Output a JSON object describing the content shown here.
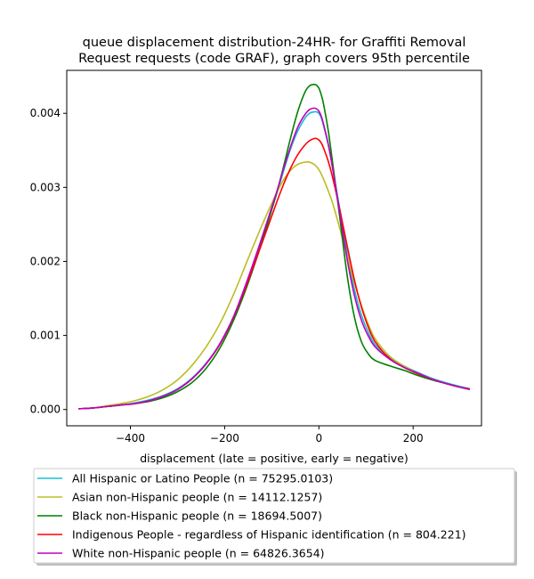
{
  "chart_data": {
    "type": "line",
    "title_line1": "queue displacement distribution-24HR-  for Graffiti Removal",
    "title_line2": "Request  requests (code GRAF), graph covers 95th percentile",
    "xlabel": "displacement (late = positive, early = negative)",
    "ylabel": "",
    "xlim": [
      -535,
      345
    ],
    "ylim": [
      -0.00022,
      0.00458
    ],
    "x_ticks": [
      -400,
      -200,
      0,
      200
    ],
    "x_tick_labels": [
      "−400",
      "−200",
      "0",
      "200"
    ],
    "y_ticks": [
      0.0,
      0.001,
      0.002,
      0.003,
      0.004
    ],
    "y_tick_labels": [
      "0.000",
      "0.001",
      "0.002",
      "0.003",
      "0.004"
    ],
    "grid": false,
    "legend_position": "below plot",
    "x": [
      -510,
      -480,
      -450,
      -420,
      -390,
      -360,
      -330,
      -300,
      -270,
      -240,
      -210,
      -180,
      -150,
      -120,
      -90,
      -75,
      -60,
      -45,
      -30,
      -20,
      -10,
      -5,
      0,
      5,
      10,
      20,
      30,
      45,
      60,
      75,
      90,
      105,
      120,
      150,
      180,
      210,
      240,
      270,
      300,
      320
    ],
    "series": [
      {
        "name": "All Hispanic or Latino People (n = 75295.0103)",
        "color": "#17becf",
        "values": [
          1e-05,
          2e-05,
          4e-05,
          6e-05,
          9e-05,
          0.00013,
          0.00019,
          0.00028,
          0.00042,
          0.00062,
          0.00089,
          0.00127,
          0.00177,
          0.00232,
          0.0029,
          0.00322,
          0.00352,
          0.00376,
          0.00393,
          0.004,
          0.00402,
          0.00402,
          0.004,
          0.00394,
          0.00383,
          0.00357,
          0.00324,
          0.00268,
          0.00211,
          0.00163,
          0.00128,
          0.00104,
          0.00087,
          0.0007,
          0.00059,
          0.0005,
          0.00042,
          0.00036,
          0.00031,
          0.00028
        ]
      },
      {
        "name": "Asian non-Hispanic people (n = 14112.1257)",
        "color": "#bcbd22",
        "values": [
          1e-05,
          2e-05,
          5e-05,
          8e-05,
          0.00012,
          0.00018,
          0.00027,
          0.0004,
          0.00059,
          0.00084,
          0.00116,
          0.00157,
          0.00204,
          0.0025,
          0.00292,
          0.0031,
          0.00323,
          0.00331,
          0.00334,
          0.00334,
          0.00331,
          0.00328,
          0.00324,
          0.00318,
          0.00311,
          0.00295,
          0.00277,
          0.00243,
          0.00207,
          0.00172,
          0.00141,
          0.00115,
          0.00095,
          0.00072,
          0.00059,
          0.00049,
          0.00041,
          0.00035,
          0.0003,
          0.00027
        ]
      },
      {
        "name": "Black non-Hispanic people (n = 18694.5007)",
        "color": "#008000",
        "values": [
          1e-05,
          2e-05,
          4e-05,
          6e-05,
          8e-05,
          0.00011,
          0.00016,
          0.00024,
          0.00036,
          0.00055,
          0.00083,
          0.00122,
          0.00171,
          0.00228,
          0.00292,
          0.00328,
          0.00367,
          0.00402,
          0.00428,
          0.00437,
          0.00439,
          0.00438,
          0.00434,
          0.00425,
          0.00412,
          0.00376,
          0.00329,
          0.00256,
          0.00181,
          0.00126,
          0.00092,
          0.00075,
          0.00066,
          0.00059,
          0.00053,
          0.00046,
          0.0004,
          0.00035,
          0.0003,
          0.00027
        ]
      },
      {
        "name": "Indigenous People - regardless of Hispanic identification (n = 804.221)",
        "color": "#ff0000",
        "values": [
          1e-05,
          2e-05,
          4e-05,
          6e-05,
          8e-05,
          0.00012,
          0.00018,
          0.00027,
          0.00041,
          0.00061,
          0.00088,
          0.00126,
          0.00174,
          0.00226,
          0.00279,
          0.00304,
          0.00326,
          0.00344,
          0.00357,
          0.00363,
          0.00366,
          0.00366,
          0.00364,
          0.0036,
          0.00353,
          0.00335,
          0.00311,
          0.00268,
          0.00221,
          0.00176,
          0.00139,
          0.00111,
          0.00091,
          0.00069,
          0.00057,
          0.00048,
          0.00041,
          0.00035,
          0.0003,
          0.00028
        ]
      },
      {
        "name": "White non-Hispanic people (n = 64826.3654)",
        "color": "#bf00bf",
        "values": [
          1e-05,
          2e-05,
          4e-05,
          6e-05,
          8e-05,
          0.00012,
          0.00018,
          0.00027,
          0.00041,
          0.00061,
          0.00089,
          0.00127,
          0.00178,
          0.00234,
          0.00293,
          0.00325,
          0.00355,
          0.00381,
          0.00398,
          0.00405,
          0.00407,
          0.00406,
          0.00403,
          0.00396,
          0.00385,
          0.00358,
          0.00322,
          0.00263,
          0.00203,
          0.00155,
          0.00121,
          0.00099,
          0.00084,
          0.00068,
          0.00057,
          0.00049,
          0.00041,
          0.00035,
          0.0003,
          0.00027
        ]
      }
    ]
  }
}
